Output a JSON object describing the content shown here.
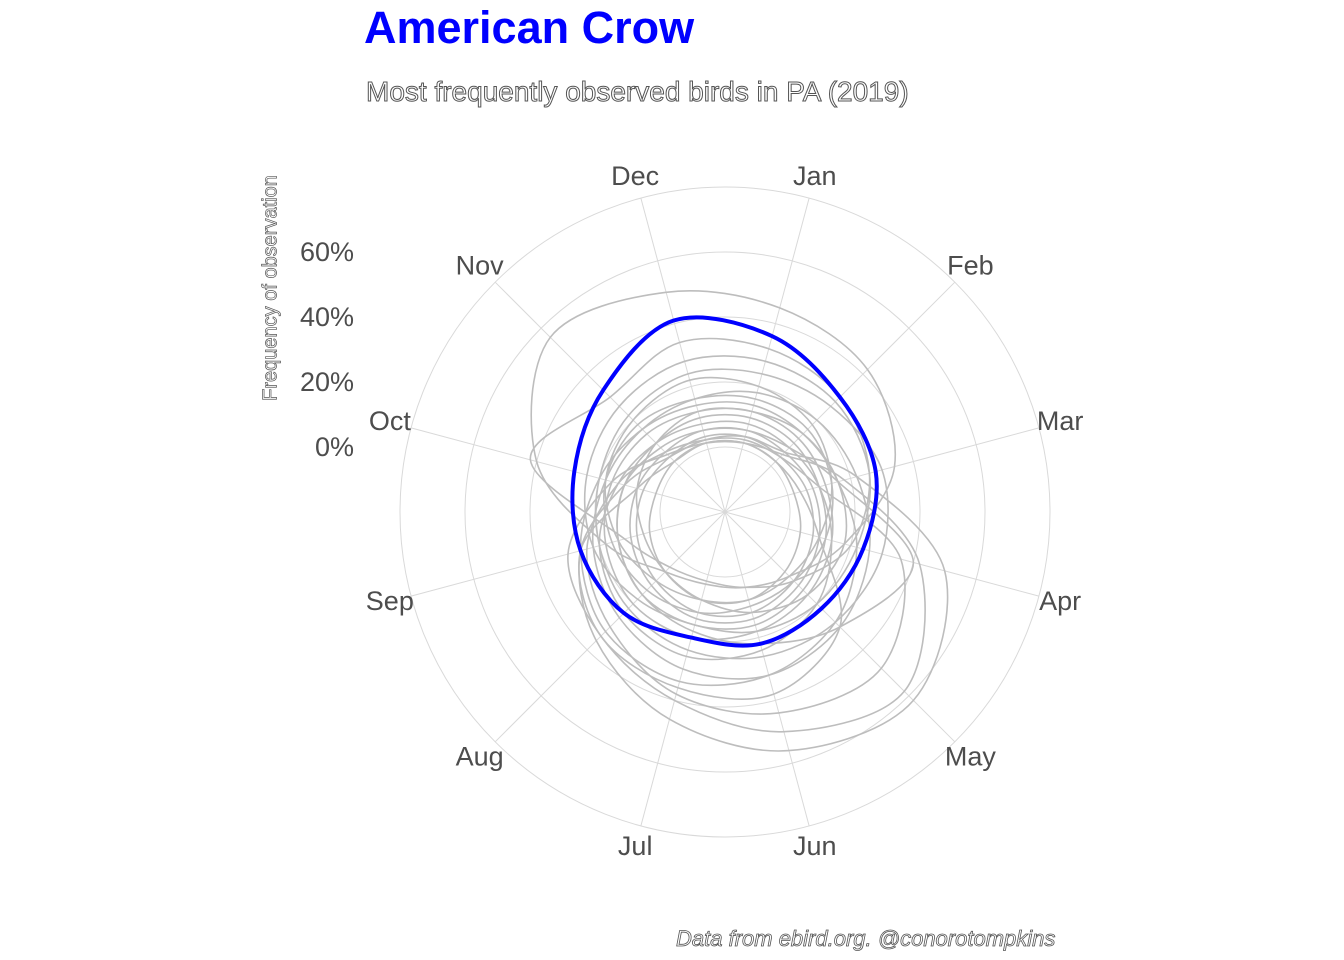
{
  "title": "American Crow",
  "subtitle": "Most frequently observed birds in PA (2019)",
  "caption": "Data from ebird.org. @conorotompkins",
  "colors": {
    "highlight": "#0000ff",
    "background_series": "#bdbdbd",
    "grid": "#d9d9d9",
    "text": "#4d4d4d"
  },
  "chart_data": {
    "type": "line",
    "coord": "polar",
    "title": "American Crow",
    "subtitle": "Most frequently observed birds in PA (2019)",
    "ylabel": "Frequency of observation",
    "xlabel": "",
    "y_ticks": [
      "0%",
      "20%",
      "40%",
      "60%"
    ],
    "y_tick_values": [
      0,
      20,
      40,
      60
    ],
    "ylim": [
      -20,
      80
    ],
    "grid": true,
    "categories": [
      "Jan",
      "Feb",
      "Mar",
      "Apr",
      "May",
      "Jun",
      "Jul",
      "Aug",
      "Sep",
      "Oct",
      "Nov",
      "Dec"
    ],
    "highlight_series": {
      "name": "American Crow",
      "values": [
        36,
        30,
        28,
        24,
        22,
        22,
        20,
        24,
        26,
        28,
        33,
        41
      ]
    },
    "background_series": [
      {
        "values": [
          2,
          5,
          18,
          42,
          58,
          50,
          40,
          34,
          30,
          16,
          5,
          2
        ]
      },
      {
        "values": [
          4,
          6,
          22,
          50,
          62,
          56,
          46,
          36,
          26,
          12,
          4,
          3
        ]
      },
      {
        "values": [
          3,
          4,
          10,
          36,
          48,
          44,
          38,
          30,
          24,
          14,
          6,
          3
        ]
      },
      {
        "values": [
          45,
          42,
          34,
          18,
          8,
          4,
          3,
          6,
          18,
          40,
          56,
          50
        ]
      },
      {
        "values": [
          32,
          30,
          26,
          20,
          10,
          4,
          2,
          4,
          12,
          42,
          30,
          34
        ]
      },
      {
        "values": [
          28,
          28,
          26,
          22,
          20,
          18,
          16,
          18,
          22,
          24,
          26,
          28
        ]
      },
      {
        "values": [
          24,
          26,
          30,
          30,
          28,
          26,
          24,
          22,
          20,
          20,
          22,
          24
        ]
      },
      {
        "values": [
          18,
          20,
          22,
          26,
          30,
          32,
          30,
          26,
          22,
          18,
          16,
          16
        ]
      },
      {
        "values": [
          6,
          8,
          16,
          40,
          30,
          22,
          18,
          16,
          14,
          12,
          8,
          6
        ]
      },
      {
        "values": [
          14,
          14,
          16,
          22,
          28,
          32,
          34,
          32,
          26,
          20,
          16,
          14
        ]
      },
      {
        "values": [
          20,
          18,
          14,
          10,
          8,
          8,
          8,
          10,
          14,
          18,
          20,
          22
        ]
      },
      {
        "values": [
          2,
          2,
          4,
          10,
          30,
          38,
          36,
          34,
          26,
          8,
          2,
          2
        ]
      },
      {
        "values": [
          12,
          12,
          12,
          14,
          16,
          18,
          20,
          20,
          18,
          16,
          14,
          12
        ]
      },
      {
        "values": [
          8,
          8,
          10,
          14,
          20,
          24,
          26,
          24,
          20,
          14,
          10,
          8
        ]
      },
      {
        "values": [
          10,
          10,
          10,
          12,
          14,
          16,
          16,
          16,
          14,
          12,
          10,
          10
        ]
      },
      {
        "values": [
          16,
          16,
          14,
          12,
          10,
          10,
          12,
          14,
          16,
          18,
          18,
          16
        ]
      },
      {
        "values": [
          6,
          6,
          8,
          10,
          12,
          14,
          14,
          12,
          10,
          8,
          6,
          6
        ]
      },
      {
        "values": [
          4,
          4,
          6,
          8,
          10,
          12,
          12,
          10,
          8,
          6,
          4,
          4
        ]
      },
      {
        "values": [
          12,
          14,
          16,
          18,
          16,
          12,
          8,
          6,
          6,
          8,
          10,
          12
        ]
      },
      {
        "values": [
          2,
          2,
          2,
          4,
          6,
          8,
          8,
          6,
          4,
          2,
          2,
          2
        ]
      }
    ]
  }
}
